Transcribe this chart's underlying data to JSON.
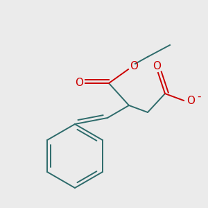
{
  "bg_color": "#ebebeb",
  "bond_color": "#2d6b6b",
  "oxygen_color": "#cc0000",
  "line_width": 1.4,
  "figsize": [
    3.0,
    3.0
  ],
  "dpi": 100,
  "xlim": [
    0,
    300
  ],
  "ylim": [
    0,
    300
  ]
}
